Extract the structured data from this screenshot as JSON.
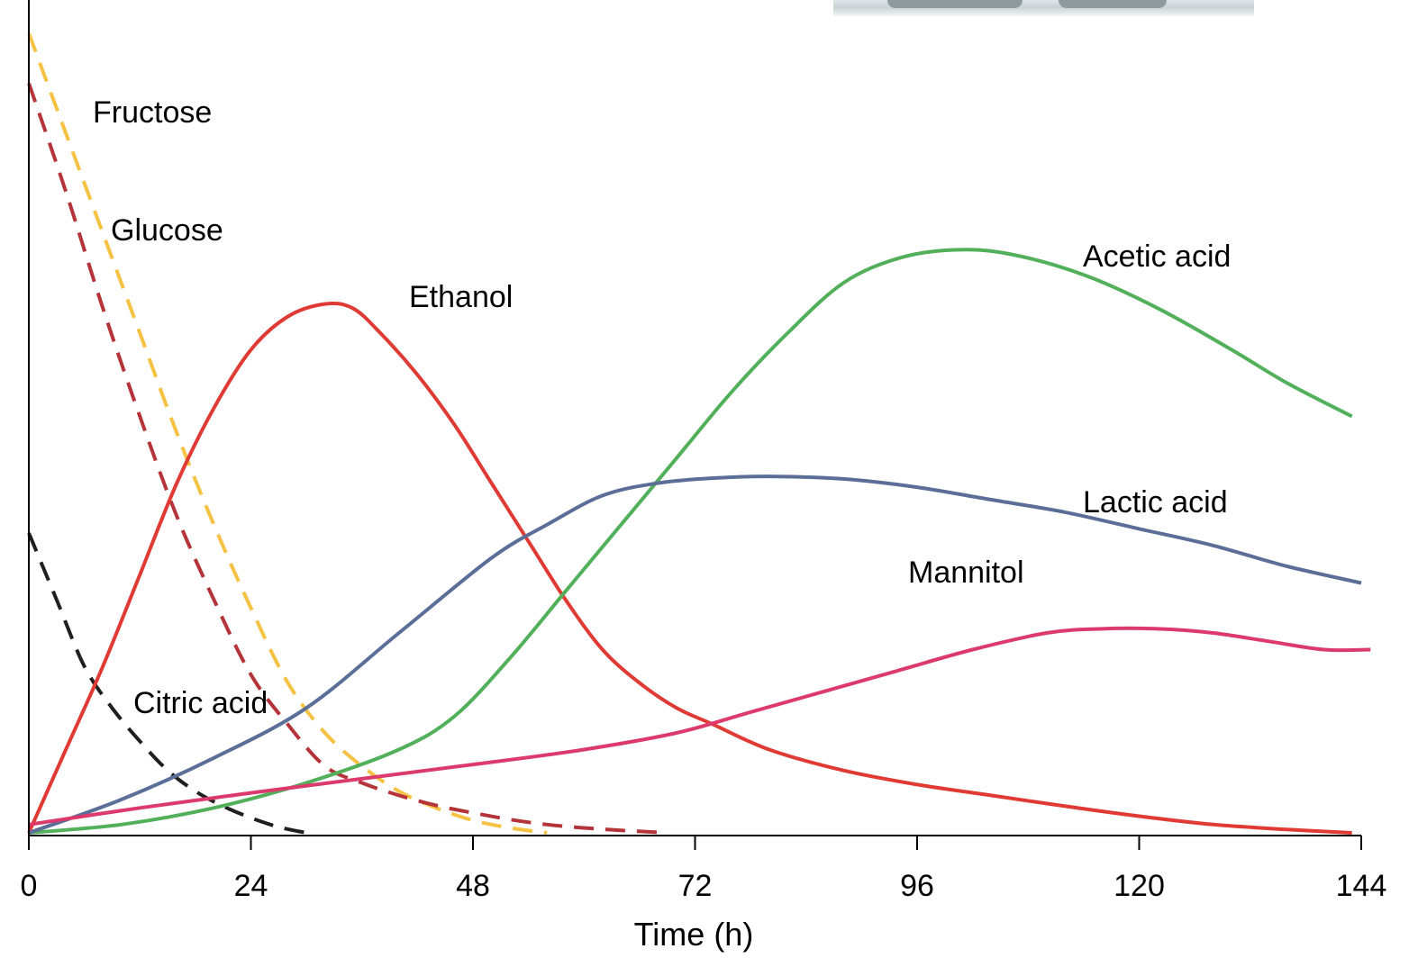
{
  "chart_data": {
    "type": "line",
    "title": "",
    "xlabel": "Time (h)",
    "ylabel": "",
    "xlim": [
      0,
      144
    ],
    "ylim": [
      0,
      1
    ],
    "x_ticks": [
      0,
      24,
      48,
      72,
      96,
      120,
      144
    ],
    "grid": false,
    "legend": "none",
    "series": [
      {
        "name": "Fructose",
        "color": "#f5c244",
        "style": "dashed",
        "x": [
          0,
          4,
          8,
          12,
          16,
          20,
          24,
          28,
          32,
          36,
          40,
          44,
          48,
          52,
          56
        ],
        "y": [
          0.96,
          0.84,
          0.72,
          0.6,
          0.48,
          0.37,
          0.27,
          0.18,
          0.12,
          0.08,
          0.05,
          0.03,
          0.015,
          0.006,
          0.0
        ]
      },
      {
        "name": "Glucose",
        "color": "#b5343a",
        "style": "dashed",
        "x": [
          0,
          4,
          8,
          12,
          16,
          20,
          24,
          28,
          32,
          36,
          40,
          44,
          48,
          52,
          56,
          60,
          64,
          69
        ],
        "y": [
          0.9,
          0.77,
          0.63,
          0.5,
          0.38,
          0.28,
          0.19,
          0.13,
          0.08,
          0.06,
          0.045,
          0.033,
          0.024,
          0.016,
          0.01,
          0.006,
          0.003,
          0.0
        ]
      },
      {
        "name": "Citric acid",
        "color": "#1f1f1f",
        "style": "dashed",
        "x": [
          0,
          3,
          6,
          9,
          12,
          15,
          18,
          21,
          24,
          27,
          30
        ],
        "y": [
          0.36,
          0.28,
          0.2,
          0.15,
          0.11,
          0.075,
          0.05,
          0.032,
          0.018,
          0.007,
          0.0
        ]
      },
      {
        "name": "Ethanol",
        "color": "#e03a34",
        "style": "solid",
        "x": [
          0,
          4,
          8,
          12,
          16,
          20,
          24,
          28,
          32,
          35,
          38,
          42,
          46,
          50,
          54,
          58,
          62,
          66,
          70,
          74,
          80,
          88,
          96,
          104,
          112,
          120,
          128,
          136,
          143
        ],
        "y": [
          0.0,
          0.1,
          0.2,
          0.31,
          0.42,
          0.51,
          0.58,
          0.62,
          0.635,
          0.63,
          0.6,
          0.55,
          0.49,
          0.42,
          0.35,
          0.28,
          0.22,
          0.18,
          0.15,
          0.13,
          0.1,
          0.075,
          0.058,
          0.045,
          0.032,
          0.02,
          0.01,
          0.004,
          0.0
        ]
      },
      {
        "name": "Acetic acid",
        "color": "#52b05a",
        "style": "solid",
        "x": [
          0,
          10,
          20,
          30,
          40,
          46,
          52,
          58,
          64,
          70,
          76,
          82,
          88,
          94,
          100,
          106,
          114,
          122,
          130,
          136,
          143
        ],
        "y": [
          0.0,
          0.01,
          0.03,
          0.06,
          0.1,
          0.14,
          0.21,
          0.29,
          0.37,
          0.45,
          0.53,
          0.6,
          0.66,
          0.69,
          0.7,
          0.695,
          0.67,
          0.63,
          0.58,
          0.54,
          0.5
        ]
      },
      {
        "name": "Lactic acid",
        "color": "#5a6e98",
        "style": "solid",
        "x": [
          0,
          10,
          20,
          30,
          40,
          50,
          56,
          62,
          68,
          74,
          80,
          88,
          96,
          104,
          112,
          120,
          128,
          136,
          144
        ],
        "y": [
          0.0,
          0.04,
          0.09,
          0.15,
          0.24,
          0.33,
          0.37,
          0.405,
          0.42,
          0.426,
          0.428,
          0.425,
          0.415,
          0.4,
          0.385,
          0.365,
          0.345,
          0.32,
          0.3
        ]
      },
      {
        "name": "Mannitol",
        "color": "#dc3a6c",
        "style": "solid",
        "x": [
          0,
          12,
          24,
          36,
          48,
          60,
          70,
          78,
          86,
          94,
          102,
          110,
          116,
          122,
          128,
          134,
          140,
          145
        ],
        "y": [
          0.01,
          0.03,
          0.048,
          0.065,
          0.082,
          0.1,
          0.12,
          0.145,
          0.17,
          0.195,
          0.22,
          0.24,
          0.245,
          0.245,
          0.24,
          0.23,
          0.22,
          0.22
        ]
      }
    ],
    "annotations": [
      {
        "text": "Fructose",
        "series": "Fructose"
      },
      {
        "text": "Glucose",
        "series": "Glucose"
      },
      {
        "text": "Citric acid",
        "series": "Citric acid"
      },
      {
        "text": "Ethanol",
        "series": "Ethanol"
      },
      {
        "text": "Acetic acid",
        "series": "Acetic acid"
      },
      {
        "text": "Lactic acid",
        "series": "Lactic acid"
      },
      {
        "text": "Mannitol",
        "series": "Mannitol"
      }
    ]
  }
}
